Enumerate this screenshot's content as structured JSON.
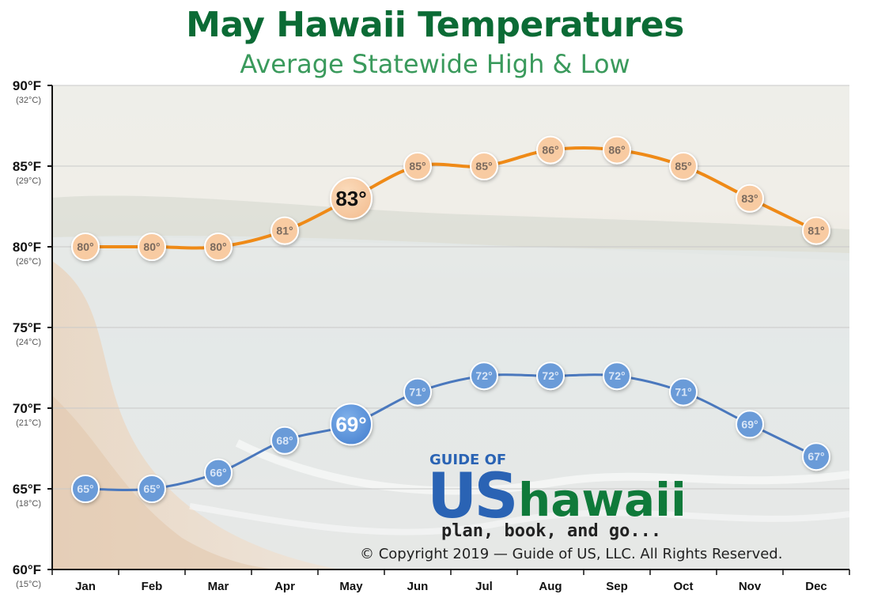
{
  "title": "May Hawaii Temperatures",
  "subtitle": "Average Statewide High & Low",
  "logo": {
    "top": "GUIDE OF",
    "us": "US",
    "brand": "hawaii",
    "tagline": "plan, book, and go..."
  },
  "copyright": "© Copyright 2019 — Guide of US, LLC. All Rights Reserved.",
  "colors": {
    "high_line": "#ef8a17",
    "high_marker": "#f8cba2",
    "low_line": "#4a78bd",
    "low_marker": "#6a9bd8",
    "title": "#0b6b35",
    "subtitle": "#3a9a5c"
  },
  "chart_data": {
    "type": "line",
    "categories": [
      "Jan",
      "Feb",
      "Mar",
      "Apr",
      "May",
      "Jun",
      "Jul",
      "Aug",
      "Sep",
      "Oct",
      "Nov",
      "Dec"
    ],
    "highlight_category": "May",
    "ylim": [
      60,
      90
    ],
    "yticks": [
      {
        "value": 90,
        "f": "90°F",
        "c": "(32°C)"
      },
      {
        "value": 85,
        "f": "85°F",
        "c": "(29°C)"
      },
      {
        "value": 80,
        "f": "80°F",
        "c": "(26°C)"
      },
      {
        "value": 75,
        "f": "75°F",
        "c": "(24°C)"
      },
      {
        "value": 70,
        "f": "70°F",
        "c": "(21°C)"
      },
      {
        "value": 65,
        "f": "65°F",
        "c": "(18°C)"
      },
      {
        "value": 60,
        "f": "60°F",
        "c": "(15°C)"
      }
    ],
    "grid": true,
    "series": [
      {
        "key": "high",
        "values": [
          80,
          80,
          80,
          81,
          83,
          85,
          85,
          86,
          86,
          85,
          83,
          81
        ],
        "labels": [
          "80°",
          "80°",
          "80°",
          "81°",
          "83°",
          "85°",
          "85°",
          "86°",
          "86°",
          "85°",
          "83°",
          "81°"
        ]
      },
      {
        "key": "low",
        "values": [
          65,
          65,
          66,
          68,
          69,
          71,
          72,
          72,
          72,
          71,
          69,
          67
        ],
        "labels": [
          "65°",
          "65°",
          "66°",
          "68°",
          "69°",
          "71°",
          "72°",
          "72°",
          "72°",
          "71°",
          "69°",
          "67°"
        ]
      }
    ]
  }
}
